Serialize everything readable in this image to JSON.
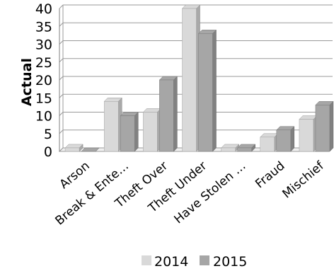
{
  "chart_data": {
    "type": "bar",
    "categories": [
      "Arson",
      "Break & Ente…",
      "Theft Over",
      "Theft Under",
      "Have Stolen …",
      "Fraud",
      "Mischief"
    ],
    "series": [
      {
        "name": "2014",
        "values": [
          1,
          14,
          11,
          40,
          1,
          4,
          9
        ],
        "color": "#d9d9d9"
      },
      {
        "name": "2015",
        "values": [
          0,
          10,
          20,
          33,
          1,
          6,
          13
        ],
        "color": "#a6a6a6"
      }
    ],
    "ylabel": "Actual",
    "yticks": [
      0,
      5,
      10,
      15,
      20,
      25,
      30,
      35,
      40
    ],
    "ylim": [
      0,
      40
    ],
    "grid": true,
    "legend": "bottom",
    "style": "3d-bar"
  }
}
